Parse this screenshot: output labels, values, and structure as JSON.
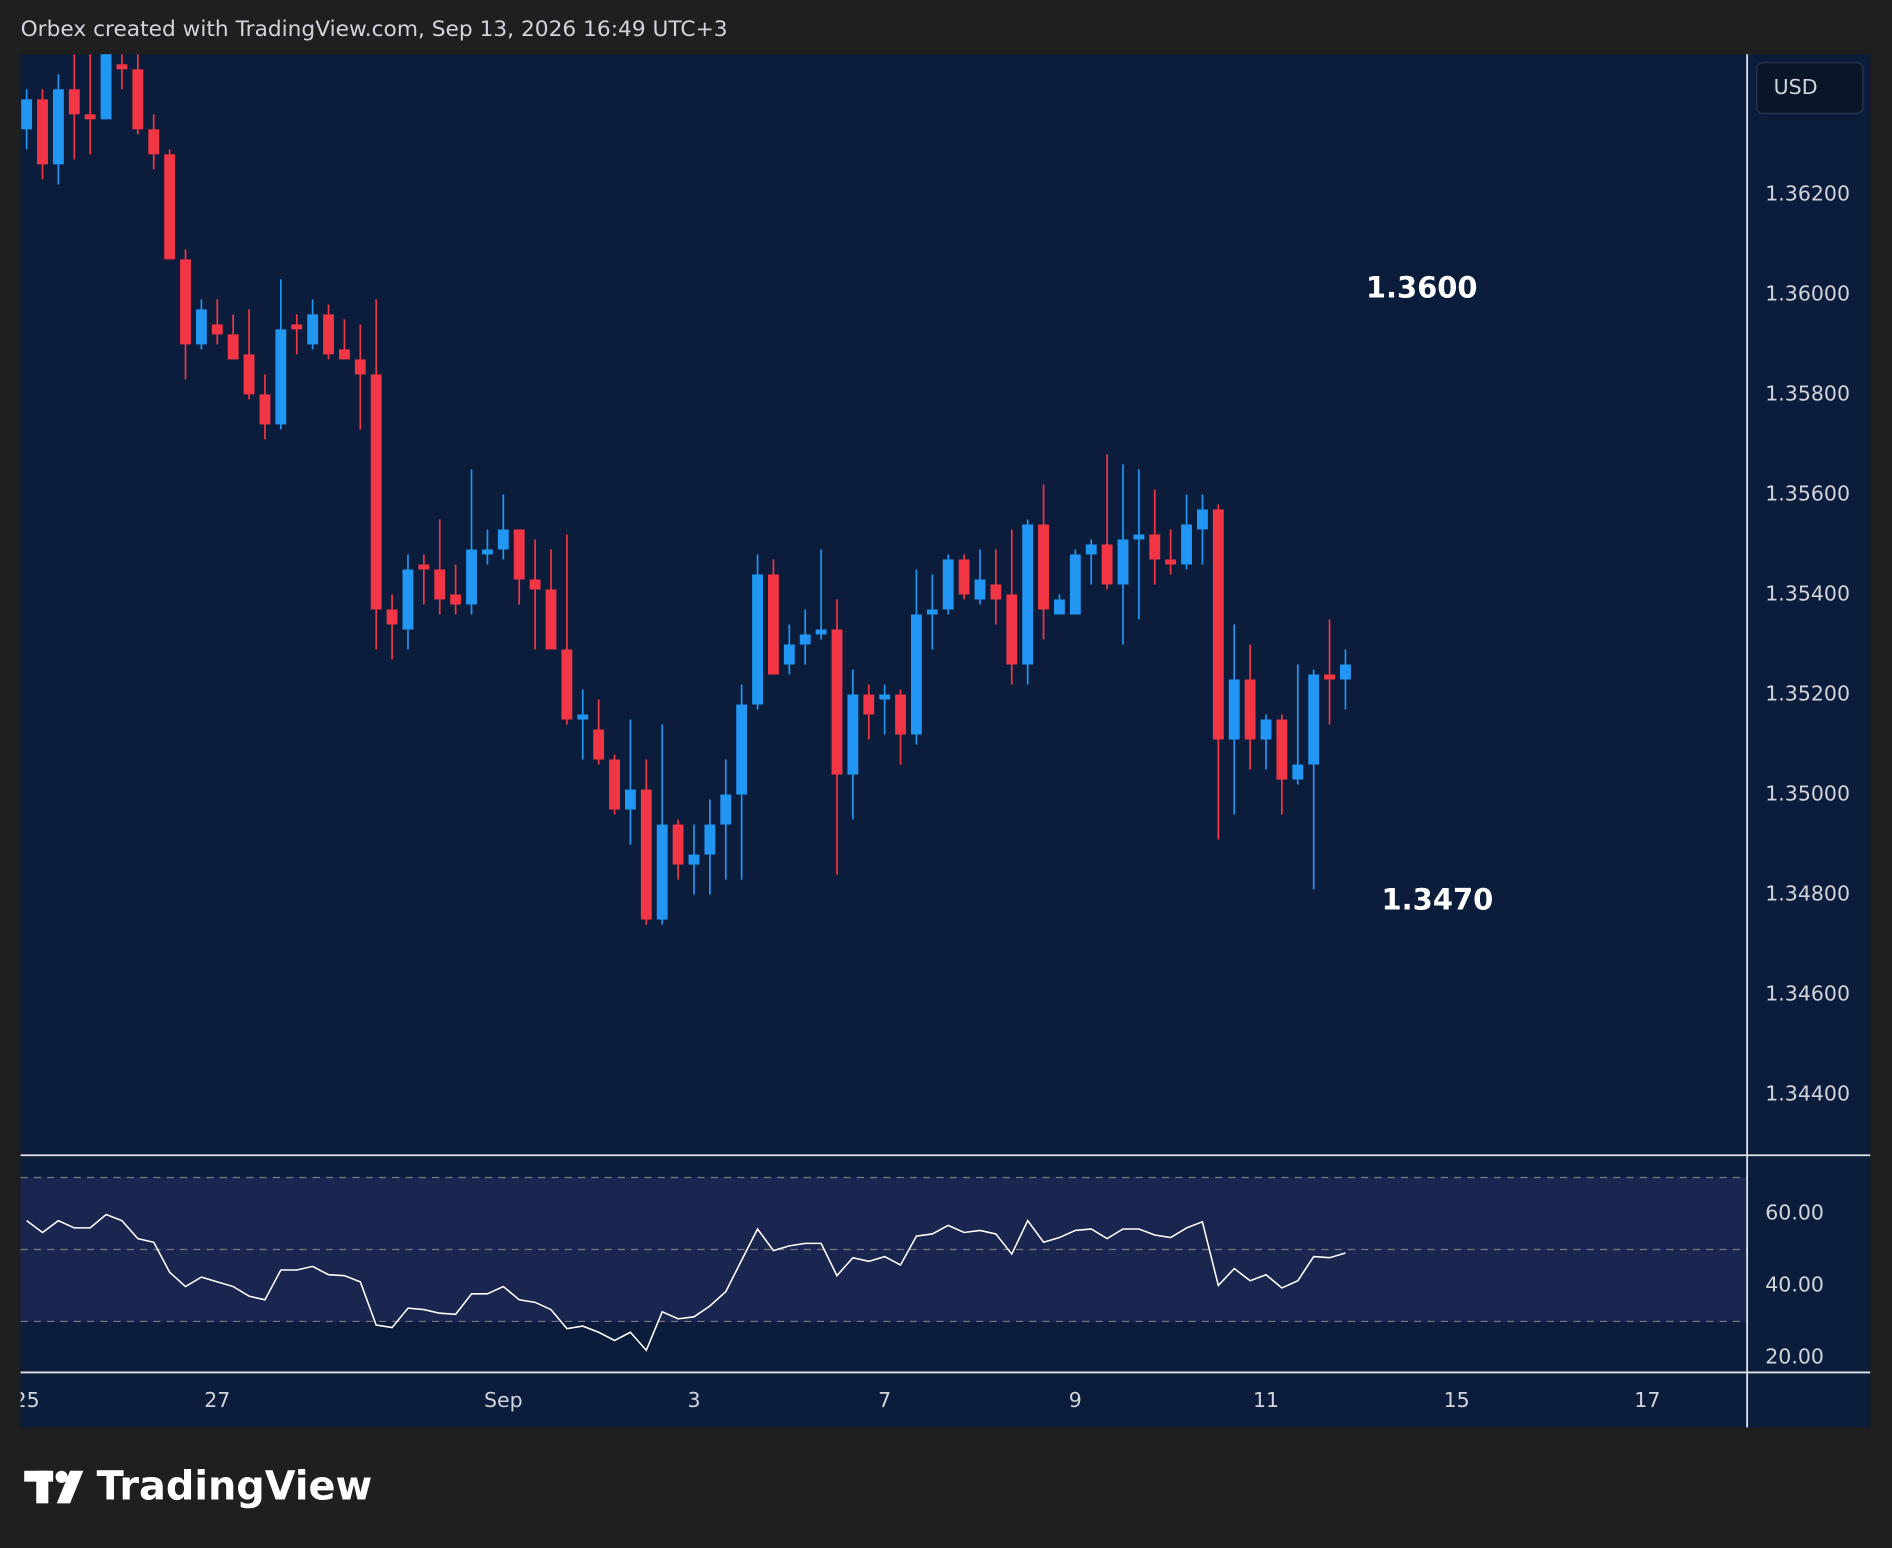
{
  "header": {
    "text": "Orbex created with TradingView.com, Sep 13, 2026 16:49 UTC+3"
  },
  "chart_data": {
    "type": "candlestick",
    "currency": "USD",
    "annotations": [
      {
        "text": "1.3600"
      },
      {
        "text": "1.3470"
      }
    ],
    "up_color": "#2196f3",
    "down_color": "#f23645",
    "open": [
      1.3633,
      1.3639,
      1.3626,
      1.3641,
      1.3636,
      1.3635,
      1.3646,
      1.3645,
      1.3633,
      1.3628,
      1.3607,
      1.359,
      1.3594,
      1.3592,
      1.3588,
      1.358,
      1.3574,
      1.3594,
      1.359,
      1.3596,
      1.3589,
      1.3587,
      1.3584,
      1.3537,
      1.3533,
      1.3546,
      1.3545,
      1.354,
      1.3538,
      1.3548,
      1.3549,
      1.3553,
      1.3543,
      1.3541,
      1.3529,
      1.3515,
      1.3513,
      1.3507,
      1.3497,
      1.3501,
      1.3475,
      1.3494,
      1.3486,
      1.3488,
      1.3494,
      1.35,
      1.3518,
      1.3544,
      1.3526,
      1.353,
      1.3532,
      1.3533,
      1.3504,
      1.352,
      1.3519,
      1.352,
      1.3512,
      1.3536,
      1.3537,
      1.3547,
      1.3539,
      1.3542,
      1.354,
      1.3526,
      1.3554,
      1.3536,
      1.3536,
      1.3548,
      1.355,
      1.3542,
      1.3551,
      1.3552,
      1.3547,
      1.3546,
      1.3553,
      1.3557,
      1.3511,
      1.3523,
      1.3511,
      1.3515,
      1.3503,
      1.3506,
      1.3524,
      1.3523
    ],
    "high": [
      1.3641,
      1.3641,
      1.3644,
      1.3648,
      1.3648,
      1.365,
      1.3649,
      1.3649,
      1.3636,
      1.3629,
      1.3609,
      1.3599,
      1.3599,
      1.3596,
      1.3597,
      1.3584,
      1.3603,
      1.3596,
      1.3599,
      1.3598,
      1.3595,
      1.3594,
      1.3599,
      1.354,
      1.3548,
      1.3548,
      1.3555,
      1.3546,
      1.3565,
      1.3553,
      1.356,
      1.3553,
      1.3551,
      1.3549,
      1.3552,
      1.3521,
      1.3519,
      1.3508,
      1.3515,
      1.3507,
      1.3514,
      1.3495,
      1.3494,
      1.3499,
      1.3507,
      1.3522,
      1.3548,
      1.3547,
      1.3534,
      1.3537,
      1.3549,
      1.3539,
      1.3525,
      1.3522,
      1.3522,
      1.3521,
      1.3545,
      1.3544,
      1.3548,
      1.3548,
      1.3549,
      1.3549,
      1.3553,
      1.3555,
      1.3562,
      1.354,
      1.3549,
      1.3551,
      1.3568,
      1.3566,
      1.3565,
      1.3561,
      1.3553,
      1.356,
      1.356,
      1.3558,
      1.3534,
      1.353,
      1.3516,
      1.3516,
      1.3526,
      1.3525,
      1.3535,
      1.3529
    ],
    "low": [
      1.3629,
      1.3623,
      1.3622,
      1.3627,
      1.3628,
      1.3635,
      1.3641,
      1.3632,
      1.3625,
      1.3607,
      1.3583,
      1.3589,
      1.359,
      1.3587,
      1.3579,
      1.3571,
      1.3573,
      1.3588,
      1.3589,
      1.3587,
      1.3587,
      1.3573,
      1.3529,
      1.3527,
      1.3529,
      1.3538,
      1.3536,
      1.3536,
      1.3536,
      1.3546,
      1.3547,
      1.3538,
      1.3529,
      1.3529,
      1.3514,
      1.3507,
      1.3506,
      1.3496,
      1.349,
      1.3474,
      1.3474,
      1.3483,
      1.348,
      1.348,
      1.3483,
      1.3483,
      1.3517,
      1.3524,
      1.3524,
      1.3526,
      1.3531,
      1.3484,
      1.3495,
      1.3511,
      1.3512,
      1.3506,
      1.351,
      1.3529,
      1.3536,
      1.3539,
      1.3538,
      1.3534,
      1.3522,
      1.3522,
      1.3531,
      1.3536,
      1.3536,
      1.3542,
      1.3541,
      1.353,
      1.3535,
      1.3542,
      1.3544,
      1.3545,
      1.3546,
      1.3491,
      1.3496,
      1.3505,
      1.3505,
      1.3496,
      1.3502,
      1.3481,
      1.3514,
      1.3517
    ],
    "close": [
      1.3639,
      1.3626,
      1.3641,
      1.3636,
      1.3635,
      1.3649,
      1.3645,
      1.3633,
      1.3628,
      1.3607,
      1.359,
      1.3597,
      1.3592,
      1.3587,
      1.358,
      1.3574,
      1.3593,
      1.3593,
      1.3596,
      1.3588,
      1.3587,
      1.3584,
      1.3537,
      1.3534,
      1.3545,
      1.3545,
      1.3539,
      1.3538,
      1.3549,
      1.3549,
      1.3553,
      1.3543,
      1.3541,
      1.3529,
      1.3515,
      1.3516,
      1.3507,
      1.3497,
      1.3501,
      1.3475,
      1.3494,
      1.3486,
      1.3488,
      1.3494,
      1.35,
      1.3518,
      1.3544,
      1.3524,
      1.353,
      1.3532,
      1.3533,
      1.3504,
      1.352,
      1.3516,
      1.352,
      1.3512,
      1.3536,
      1.3537,
      1.3547,
      1.354,
      1.3543,
      1.3539,
      1.3526,
      1.3554,
      1.3537,
      1.3539,
      1.3548,
      1.355,
      1.3542,
      1.3551,
      1.3552,
      1.3547,
      1.3546,
      1.3554,
      1.3557,
      1.3511,
      1.3523,
      1.3511,
      1.3515,
      1.3503,
      1.3506,
      1.3524,
      1.3523,
      1.3526
    ],
    "ylim": [
      1.3428,
      1.3648
    ],
    "yticks": [
      {
        "value": 1.344,
        "label": "1.34400"
      },
      {
        "value": 1.346,
        "label": "1.34600"
      },
      {
        "value": 1.348,
        "label": "1.34800"
      },
      {
        "value": 1.35,
        "label": "1.35000"
      },
      {
        "value": 1.352,
        "label": "1.35200"
      },
      {
        "value": 1.354,
        "label": "1.35400"
      },
      {
        "value": 1.356,
        "label": "1.35600"
      },
      {
        "value": 1.358,
        "label": "1.35800"
      },
      {
        "value": 1.36,
        "label": "1.36000"
      },
      {
        "value": 1.362,
        "label": "1.36200"
      }
    ],
    "xlim": [
      -0.38,
      108.28
    ],
    "xticks": [
      {
        "value": 0,
        "label": "25"
      },
      {
        "value": 12,
        "label": "27"
      },
      {
        "value": 30,
        "label": "Sep"
      },
      {
        "value": 42,
        "label": "3"
      },
      {
        "value": 54,
        "label": "7"
      },
      {
        "value": 66,
        "label": "9"
      },
      {
        "value": 78,
        "label": "11"
      },
      {
        "value": 90,
        "label": "15"
      },
      {
        "value": 102,
        "label": "17"
      }
    ],
    "rsi": {
      "color": "#ffffff",
      "values": [
        58,
        54.7,
        58,
        56,
        56,
        59.7,
        58,
        53,
        52,
        43.7,
        39.7,
        42.3,
        41,
        39.7,
        37,
        36,
        44.3,
        44.3,
        45.3,
        43,
        42.7,
        41,
        29,
        28.3,
        33.7,
        33.3,
        32.3,
        32,
        37.7,
        37.7,
        39.7,
        36,
        35.3,
        33.3,
        28,
        28.7,
        27,
        24.7,
        27,
        22,
        32.7,
        30.7,
        31.3,
        34.3,
        38.3,
        47,
        55.7,
        49.7,
        51,
        51.7,
        51.7,
        42.7,
        47.7,
        46.7,
        48,
        45.7,
        53.7,
        54.3,
        56.7,
        54.7,
        55.3,
        54.3,
        48.7,
        58,
        52,
        53.3,
        55.3,
        55.7,
        53,
        55.7,
        55.7,
        54,
        53.3,
        56,
        57.7,
        40,
        44.7,
        41.3,
        43,
        39.3,
        41.3,
        48,
        47.7,
        49
      ],
      "ylim": [
        16,
        76
      ],
      "yticks": [
        {
          "value": 20,
          "label": "20.00"
        },
        {
          "value": 40,
          "label": "40.00"
        },
        {
          "value": 60,
          "label": "60.00"
        }
      ],
      "levels": [
        30,
        50,
        70
      ]
    }
  },
  "footer": {
    "brand": "TradingView"
  }
}
